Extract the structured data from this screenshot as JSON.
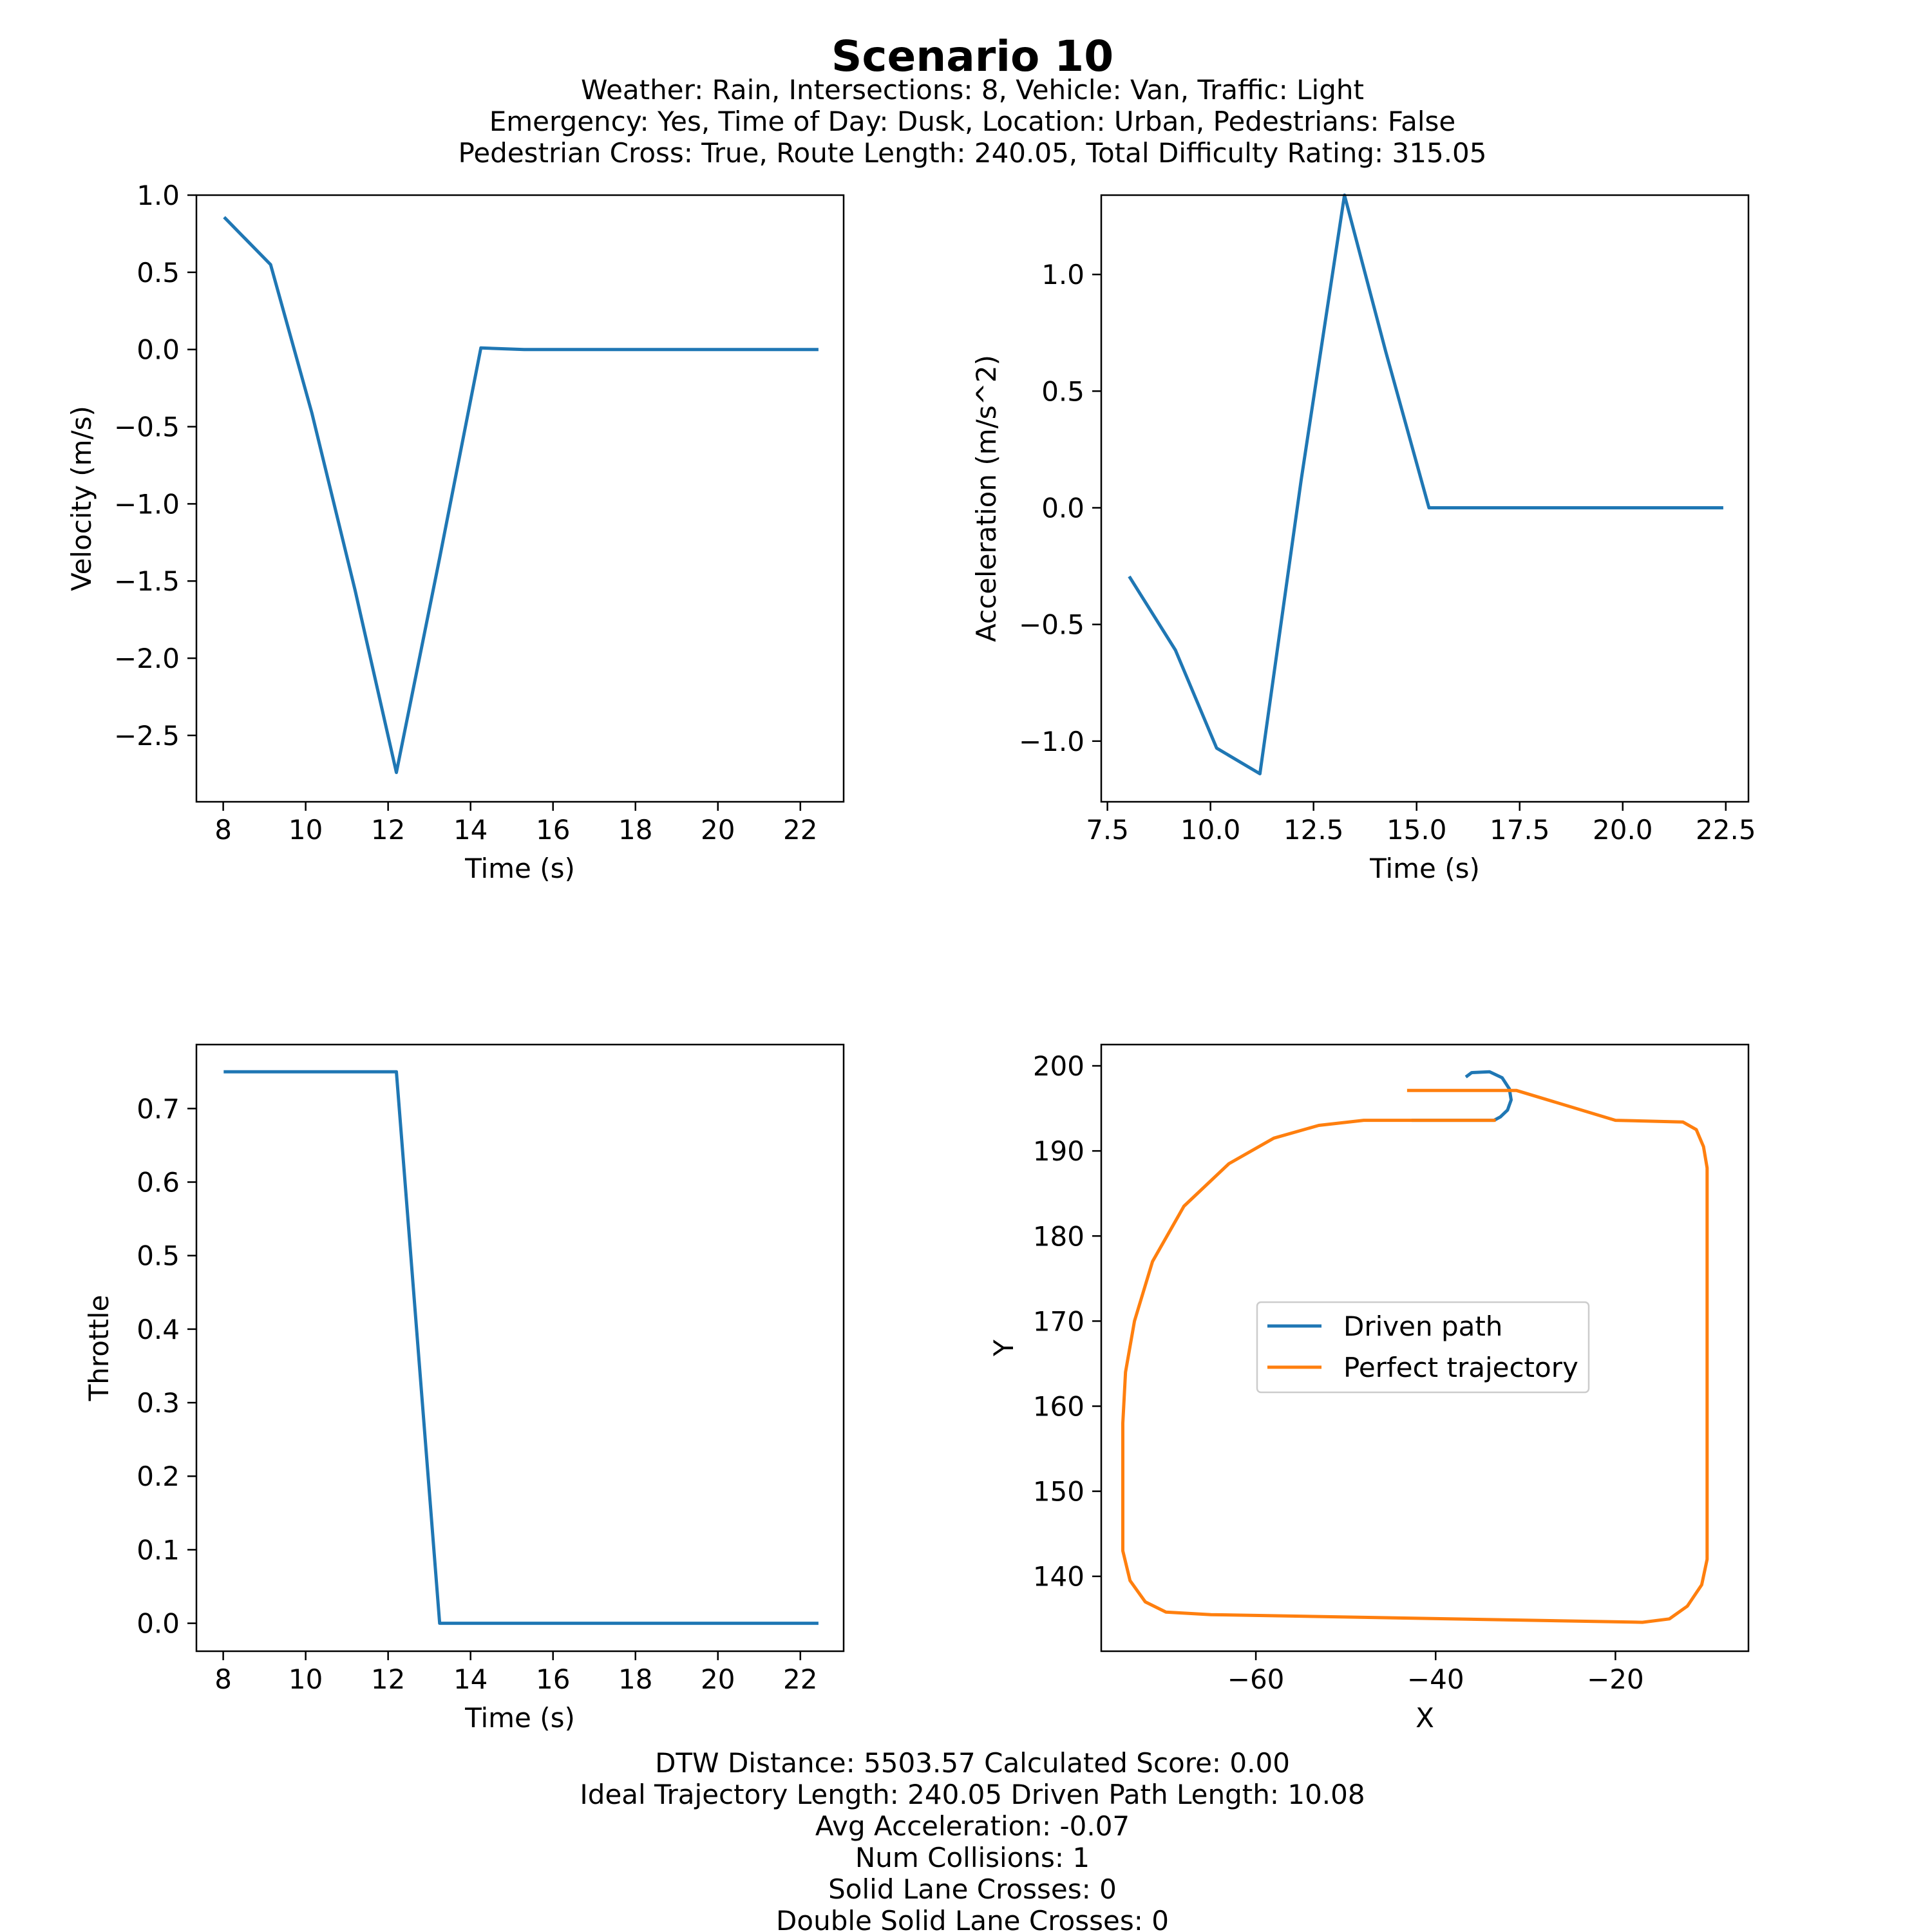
{
  "figure": {
    "title": "Scenario 10",
    "subtitle_lines": [
      "Weather: Rain, Intersections: 8, Vehicle: Van, Traffic: Light",
      "Emergency: Yes, Time of Day: Dusk, Location: Urban, Pedestrians: False",
      "Pedestrian Cross: True, Route Length: 240.05, Total Difficulty Rating: 315.05"
    ],
    "footer_lines": [
      "DTW Distance: 5503.57  Calculated Score: 0.00",
      "Ideal Trajectory Length: 240.05   Driven Path Length: 10.08",
      "Avg Acceleration: -0.07",
      "Num Collisions: 1",
      "Solid Lane Crosses: 0",
      "Double Solid Lane Crosses: 0"
    ]
  },
  "colors": {
    "blue": "#1f77b4",
    "orange": "#ff7f0e"
  },
  "chart_data": [
    {
      "id": "velocity",
      "type": "line",
      "xlabel": "Time (s)",
      "ylabel": "Velocity (m/s)",
      "xlim": [
        7.35,
        23.05
      ],
      "ylim": [
        -2.93,
        1.0
      ],
      "xticks": [
        8,
        10,
        12,
        14,
        16,
        18,
        20,
        22
      ],
      "xtick_labels": [
        "8",
        "10",
        "12",
        "14",
        "16",
        "18",
        "20",
        "22"
      ],
      "yticks": [
        1.0,
        0.5,
        0.0,
        -0.5,
        -1.0,
        -1.5,
        -2.0,
        -2.5
      ],
      "ytick_labels": [
        "1.0",
        "0.5",
        "0.0",
        "−0.5",
        "−1.0",
        "−1.5",
        "−2.0",
        "−2.5"
      ],
      "grid": false,
      "series": [
        {
          "color": "#1f77b4",
          "x": [
            8.05,
            9.15,
            10.15,
            11.2,
            12.2,
            13.25,
            14.25,
            15.3,
            16.3,
            18.4,
            20.4,
            22.4
          ],
          "y": [
            0.85,
            0.55,
            -0.41,
            -1.56,
            -2.74,
            -1.35,
            0.01,
            0.0,
            0.0,
            0.0,
            0.0,
            0.0
          ]
        }
      ]
    },
    {
      "id": "acceleration",
      "type": "line",
      "xlabel": "Time (s)",
      "ylabel": "Acceleration (m/s^2)",
      "xlim": [
        7.35,
        23.05
      ],
      "ylim": [
        -1.26,
        1.34
      ],
      "xticks": [
        7.5,
        10.0,
        12.5,
        15.0,
        17.5,
        20.0,
        22.5
      ],
      "xtick_labels": [
        "7.5",
        "10.0",
        "12.5",
        "15.0",
        "17.5",
        "20.0",
        "22.5"
      ],
      "yticks": [
        1.0,
        0.5,
        0.0,
        -0.5,
        -1.0
      ],
      "ytick_labels": [
        "1.0",
        "0.5",
        "0.0",
        "−0.5",
        "−1.0"
      ],
      "grid": false,
      "series": [
        {
          "color": "#1f77b4",
          "x": [
            8.05,
            9.15,
            10.15,
            11.2,
            12.2,
            13.25,
            14.25,
            15.3,
            17.3,
            20.3,
            22.4
          ],
          "y": [
            -0.3,
            -0.61,
            -1.03,
            -1.14,
            0.12,
            1.34,
            0.67,
            0.0,
            0.0,
            0.0,
            0.0
          ]
        }
      ]
    },
    {
      "id": "throttle",
      "type": "line",
      "xlabel": "Time (s)",
      "ylabel": "Throttle",
      "xlim": [
        7.35,
        23.05
      ],
      "ylim": [
        -0.038,
        0.787
      ],
      "xticks": [
        8,
        10,
        12,
        14,
        16,
        18,
        20,
        22
      ],
      "xtick_labels": [
        "8",
        "10",
        "12",
        "14",
        "16",
        "18",
        "20",
        "22"
      ],
      "yticks": [
        0.7,
        0.6,
        0.5,
        0.4,
        0.3,
        0.2,
        0.1,
        0.0
      ],
      "ytick_labels": [
        "0.7",
        "0.6",
        "0.5",
        "0.4",
        "0.3",
        "0.2",
        "0.1",
        "0.0"
      ],
      "grid": false,
      "series": [
        {
          "color": "#1f77b4",
          "x": [
            8.05,
            9.15,
            10.15,
            11.2,
            12.2,
            13.25,
            14.25,
            16.3,
            18.4,
            20.4,
            22.4
          ],
          "y": [
            0.75,
            0.75,
            0.75,
            0.75,
            0.75,
            0.0,
            0.0,
            0.0,
            0.0,
            0.0,
            0.0
          ]
        }
      ]
    },
    {
      "id": "trajectory",
      "type": "line",
      "xlabel": "X",
      "ylabel": "Y",
      "xlim": [
        -77.2,
        -5.2
      ],
      "ylim": [
        131.2,
        202.5
      ],
      "xticks": [
        -60,
        -40,
        -20
      ],
      "xtick_labels": [
        "−60",
        "−40",
        "−20"
      ],
      "yticks": [
        200,
        190,
        180,
        170,
        160,
        150,
        140
      ],
      "ytick_labels": [
        "200",
        "190",
        "180",
        "170",
        "160",
        "150",
        "140"
      ],
      "grid": false,
      "legend": {
        "position": "center",
        "entries": [
          {
            "label": "Driven path",
            "color": "#1f77b4"
          },
          {
            "label": "Perfect trajectory",
            "color": "#ff7f0e"
          }
        ]
      },
      "series": [
        {
          "name": "Driven path",
          "color": "#1f77b4",
          "x": [
            -36.5,
            -36.0,
            -34.0,
            -32.6,
            -31.8,
            -31.6,
            -32.0,
            -32.8,
            -33.5,
            -36.0,
            -40.0,
            -42.5
          ],
          "y": [
            198.8,
            199.2,
            199.3,
            198.6,
            197.3,
            196.0,
            194.8,
            194.0,
            193.6,
            193.6,
            193.6,
            193.6
          ]
        },
        {
          "name": "Perfect trajectory",
          "color": "#ff7f0e",
          "x": [
            -43,
            -31,
            -20,
            -12.5,
            -11,
            -10.2,
            -9.8,
            -9.8,
            -9.8,
            -10.4,
            -12,
            -14,
            -17,
            -65,
            -70,
            -72.3,
            -74,
            -74.8,
            -74.8,
            -74.8,
            -74.5,
            -73.5,
            -71.5,
            -68,
            -63,
            -58,
            -53,
            -48,
            -43,
            -38,
            -33.5
          ],
          "y": [
            197.1,
            197.1,
            193.6,
            193.4,
            192.5,
            190.5,
            188,
            170,
            142,
            139,
            136.5,
            135.0,
            134.6,
            135.5,
            135.8,
            137,
            139.5,
            143,
            150,
            158,
            164,
            170,
            177,
            183.5,
            188.5,
            191.5,
            193,
            193.6,
            193.6,
            193.6,
            193.6
          ]
        }
      ]
    }
  ]
}
